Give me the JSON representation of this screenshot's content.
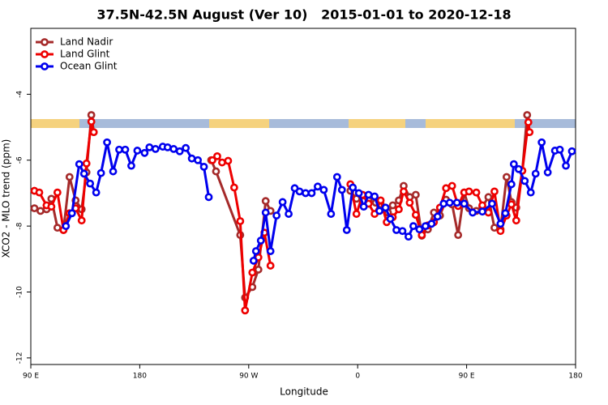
{
  "chart_data": {
    "type": "line",
    "title": "37.5N-42.5N August (Ver 10)   2015-01-01 to 2020-12-18",
    "xlabel": "Longitude",
    "ylabel": "XCO2 - MLO trend (ppm)",
    "xlim": [
      90,
      540
    ],
    "xticks": [
      {
        "value": 90,
        "label": "90 E"
      },
      {
        "value": 180,
        "label": "180"
      },
      {
        "value": 270,
        "label": "90 W"
      },
      {
        "value": 360,
        "label": "0"
      },
      {
        "value": 450,
        "label": "90 E"
      },
      {
        "value": 540,
        "label": "180"
      }
    ],
    "ylim": [
      -12.2,
      -2.0
    ],
    "yticks": [
      -4,
      -6,
      -8,
      -10,
      -12
    ],
    "legend": "top-left",
    "series": [
      {
        "name": "Land Nadir",
        "color": "#a52a2a",
        "x": [
          93,
          98,
          103,
          107,
          112,
          117,
          122,
          127,
          132,
          136,
          140,
          142,
          null,
          239,
          243,
          263,
          267,
          273,
          278,
          284,
          288,
          null,
          354,
          359,
          365,
          369,
          375,
          379,
          385,
          389,
          394,
          398,
          403,
          408,
          413,
          418,
          423,
          428,
          433,
          438,
          443,
          448,
          452,
          458,
          463,
          468,
          473,
          478,
          483,
          487,
          491,
          496,
          500,
          501
        ],
        "values": [
          -7.46,
          -7.54,
          -7.49,
          -7.17,
          -8.05,
          -8.12,
          -6.51,
          -7.22,
          -7.49,
          -6.37,
          -4.63,
          -5.15,
          null,
          -6.0,
          -6.34,
          -8.27,
          -10.17,
          -9.85,
          -9.32,
          -7.24,
          -7.54,
          null,
          -6.93,
          -7.17,
          -7.24,
          -7.22,
          -7.29,
          -7.34,
          -7.59,
          -7.37,
          -7.22,
          -6.78,
          -7.12,
          -7.05,
          -8.29,
          -8.1,
          -7.59,
          -7.68,
          -7.2,
          -7.34,
          -8.27,
          -6.98,
          -7.46,
          -7.54,
          -7.41,
          -7.12,
          -8.05,
          -8.1,
          -6.51,
          -7.27,
          -7.44,
          -6.32,
          -4.63,
          -5.15
        ]
      },
      {
        "name": "Land Glint",
        "color": "#ee0000",
        "x": [
          93,
          97,
          103,
          107,
          112,
          117,
          122,
          127,
          132,
          136,
          140,
          142,
          null,
          240,
          244,
          248,
          253,
          258,
          263,
          267,
          273,
          278,
          283,
          288,
          null,
          354,
          359,
          364,
          369,
          374,
          379,
          384,
          389,
          394,
          398,
          403,
          408,
          413,
          418,
          423,
          428,
          433,
          438,
          443,
          448,
          452,
          458,
          463,
          468,
          473,
          478,
          483,
          487,
          491,
          496,
          501,
          502
        ],
        "values": [
          -6.93,
          -6.98,
          -7.37,
          -7.41,
          -6.98,
          -8.12,
          -7.61,
          -7.46,
          -7.83,
          -6.1,
          -4.83,
          -5.15,
          null,
          -6.0,
          -5.88,
          -6.07,
          -6.02,
          -6.83,
          -7.85,
          -10.56,
          -9.41,
          -8.95,
          -8.2,
          -9.2,
          null,
          -6.73,
          -7.63,
          -7.05,
          -7.32,
          -7.63,
          -7.22,
          -7.88,
          -7.73,
          -7.49,
          -6.95,
          -7.29,
          -7.66,
          -8.27,
          -7.98,
          -7.88,
          -7.44,
          -6.85,
          -6.78,
          -7.39,
          -6.98,
          -6.95,
          -6.98,
          -7.37,
          -7.59,
          -6.95,
          -8.15,
          -7.68,
          -7.34,
          -7.83,
          -6.32,
          -4.85,
          -5.15
        ]
      },
      {
        "name": "Ocean Glint",
        "color": "#0000ee",
        "x": [
          119,
          124,
          130,
          134,
          139,
          144,
          148,
          153,
          158,
          163,
          168,
          173,
          178,
          184,
          188,
          193,
          199,
          203,
          208,
          213,
          218,
          223,
          228,
          233,
          237,
          null,
          274,
          276,
          280,
          284,
          288,
          293,
          298,
          303,
          308,
          312,
          317,
          322,
          327,
          332,
          338,
          343,
          347,
          351,
          356,
          361,
          365,
          369,
          374,
          378,
          383,
          387,
          392,
          397,
          402,
          406,
          411,
          416,
          421,
          426,
          431,
          436,
          442,
          448,
          455,
          463,
          471,
          478,
          482,
          487,
          489,
          493,
          498,
          503,
          507,
          512,
          517,
          523,
          527,
          532,
          537
        ],
        "values": [
          -8.0,
          -7.61,
          -6.12,
          -6.41,
          -6.71,
          -6.98,
          -6.39,
          -5.46,
          -6.34,
          -5.68,
          -5.68,
          -6.17,
          -5.71,
          -5.78,
          -5.61,
          -5.66,
          -5.59,
          -5.61,
          -5.66,
          -5.73,
          -5.63,
          -5.95,
          -6.0,
          -6.2,
          -7.12,
          null,
          -9.05,
          -8.76,
          -8.44,
          -7.59,
          -8.76,
          -7.68,
          -7.27,
          -7.63,
          -6.85,
          -6.95,
          -7.0,
          -7.0,
          -6.8,
          -6.9,
          -7.63,
          -6.51,
          -6.9,
          -8.12,
          -6.83,
          -7.0,
          -7.41,
          -7.05,
          -7.1,
          -7.54,
          -7.44,
          -7.78,
          -8.12,
          -8.15,
          -8.32,
          -8.0,
          -8.1,
          -8.0,
          -7.93,
          -7.71,
          -7.32,
          -7.29,
          -7.29,
          -7.32,
          -7.59,
          -7.56,
          -7.32,
          -7.93,
          -7.61,
          -6.73,
          -6.12,
          -6.27,
          -6.63,
          -6.98,
          -6.41,
          -5.46,
          -6.37,
          -5.71,
          -5.68,
          -6.17,
          -5.73
        ]
      }
    ]
  }
}
